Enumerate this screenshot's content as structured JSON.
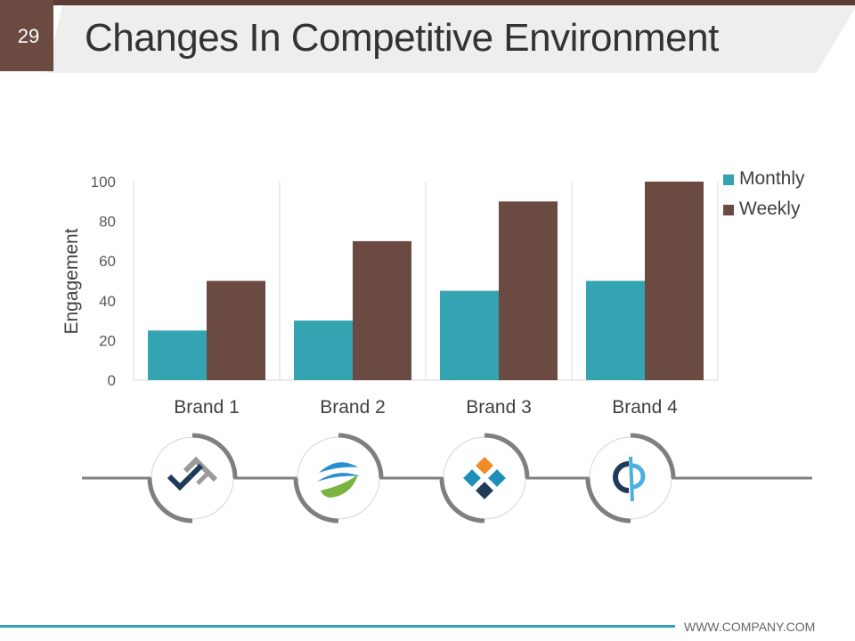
{
  "slide": {
    "number": "29",
    "title": "Changes In Competitive Environment",
    "footer": "WWW.COMPANY.COM"
  },
  "colors": {
    "monthly": "#34a3b2",
    "weekly": "#6b4a42",
    "accent_dark": "#5a3b35",
    "logo_navy": "#1f3a5a",
    "logo_gray": "#9a9a9a",
    "logo_blue": "#2a8fd0",
    "logo_green": "#7ab440",
    "logo_orange": "#f08a24",
    "logo_teal": "#1e90b8"
  },
  "chart_data": {
    "type": "bar",
    "categories": [
      "Brand 1",
      "Brand 2",
      "Brand 3",
      "Brand 4"
    ],
    "series": [
      {
        "name": "Monthly",
        "values": [
          25,
          30,
          45,
          50
        ]
      },
      {
        "name": "Weekly",
        "values": [
          50,
          70,
          90,
          100
        ]
      }
    ],
    "title": "",
    "xlabel": "",
    "ylabel": "Engagement",
    "ylim": [
      0,
      100
    ],
    "yticks": [
      "0",
      "20",
      "40",
      "60",
      "80",
      "100"
    ],
    "grid": false,
    "legend": "top-right"
  },
  "logos": [
    {
      "name": "brand-1-logo-icon"
    },
    {
      "name": "brand-2-logo-icon"
    },
    {
      "name": "brand-3-logo-icon"
    },
    {
      "name": "brand-4-logo-icon"
    }
  ]
}
